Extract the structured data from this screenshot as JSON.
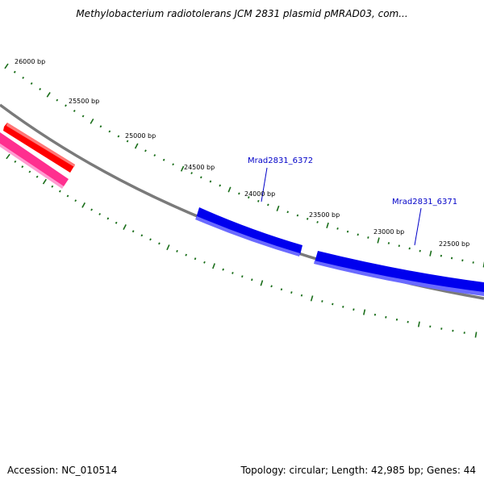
{
  "title": "Methylobacterium radiotolerans JCM 2831 plasmid pMRAD03, com...",
  "footer": {
    "accession": "Accession: NC_010514",
    "summary": "Topology: circular; Length: 42,985 bp; Genes: 44"
  },
  "colors": {
    "backbone": "#7a7a7a",
    "tick": "#1a6e1a",
    "forward_gene": "#0000ee",
    "forward_gene_highlight": "#6a6aff",
    "reverse_gene_red": "#ff0000",
    "reverse_gene_pink": "#ff3399",
    "label": "#0000c8"
  },
  "scale_labels": [
    "26000 bp",
    "25500 bp",
    "25000 bp",
    "24500 bp",
    "24000 bp",
    "23500 bp",
    "23000 bp",
    "22500 bp"
  ],
  "genes": [
    {
      "name": "Mrad2831_6372",
      "labeled": true,
      "strand": "+"
    },
    {
      "name": "Mrad2831_6371",
      "labeled": true,
      "strand": "+"
    },
    {
      "name": "",
      "labeled": false,
      "strand": "-",
      "color": "red"
    },
    {
      "name": "",
      "labeled": false,
      "strand": "-",
      "color": "pink"
    }
  ]
}
